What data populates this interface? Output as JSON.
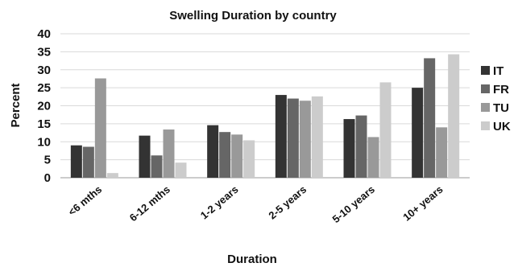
{
  "chart_data": {
    "type": "bar",
    "title": "Swelling Duration by country",
    "xlabel": "Duration",
    "ylabel": "Percent",
    "categories": [
      "<6 mths",
      "6-12 mths",
      "1-2 years",
      "2-5 years",
      "5-10 years",
      "10+ years"
    ],
    "series": [
      {
        "name": "IT",
        "color": "#333333",
        "values": [
          9.0,
          11.7,
          14.6,
          23.0,
          16.3,
          25.0
        ]
      },
      {
        "name": "FR",
        "color": "#666666",
        "values": [
          8.6,
          6.2,
          12.7,
          22.0,
          17.3,
          33.2
        ]
      },
      {
        "name": "TU",
        "color": "#999999",
        "values": [
          27.6,
          13.4,
          12.0,
          21.4,
          11.3,
          14.0
        ]
      },
      {
        "name": "UK",
        "color": "#cccccc",
        "values": [
          1.3,
          4.2,
          10.4,
          22.6,
          26.5,
          34.3
        ]
      }
    ],
    "ylim": [
      0,
      40
    ],
    "yticks": [
      "0",
      "5",
      "10",
      "15",
      "20",
      "25",
      "30",
      "35",
      "40"
    ],
    "grid": true,
    "legend_position": "right"
  }
}
